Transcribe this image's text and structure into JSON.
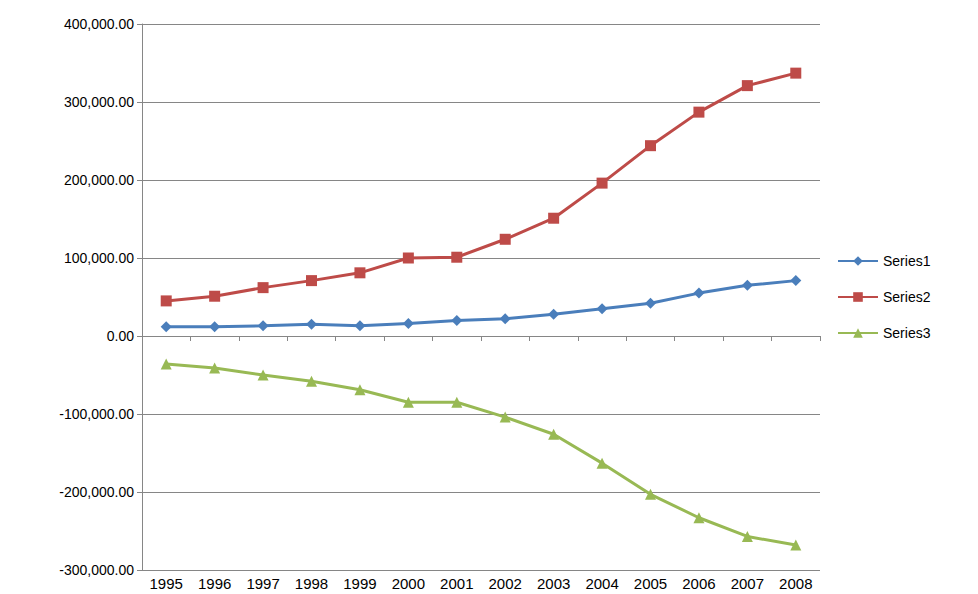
{
  "chart_data": {
    "type": "line",
    "categories": [
      "1995",
      "1996",
      "1997",
      "1998",
      "1999",
      "2000",
      "2001",
      "2002",
      "2003",
      "2004",
      "2005",
      "2006",
      "2007",
      "2008"
    ],
    "series": [
      {
        "name": "Series1",
        "color": "#4a7ebb",
        "marker": "diamond",
        "line_style": "solid",
        "values": [
          12000,
          12000,
          13000,
          15000,
          13000,
          16000,
          20000,
          22000,
          28000,
          35000,
          42000,
          55000,
          65000,
          71000
        ]
      },
      {
        "name": "Series2",
        "color": "#be4b48",
        "marker": "square",
        "line_style": "solid",
        "values": [
          45000,
          51000,
          62000,
          71000,
          81000,
          100000,
          101000,
          124000,
          151000,
          196000,
          244000,
          287000,
          321000,
          337000
        ]
      },
      {
        "name": "Series3",
        "color": "#98b954",
        "marker": "triangle",
        "line_style": "solid",
        "values": [
          -36000,
          -41000,
          -50000,
          -58000,
          -69000,
          -85000,
          -85000,
          -104000,
          -126000,
          -163000,
          -203000,
          -233000,
          -257000,
          -268000
        ]
      }
    ],
    "ylim": [
      -300000,
      400000
    ],
    "yticks": [
      {
        "value": -300000,
        "label": "-300,000.00"
      },
      {
        "value": -200000,
        "label": "-200,000.00"
      },
      {
        "value": -100000,
        "label": "-100,000.00"
      },
      {
        "value": 0,
        "label": "0.00"
      },
      {
        "value": 100000,
        "label": "100,000.00"
      },
      {
        "value": 200000,
        "label": "200,000.00"
      },
      {
        "value": 300000,
        "label": "300,000.00"
      },
      {
        "value": 400000,
        "label": "400,000.00"
      }
    ],
    "grid": true,
    "legend": "right"
  }
}
